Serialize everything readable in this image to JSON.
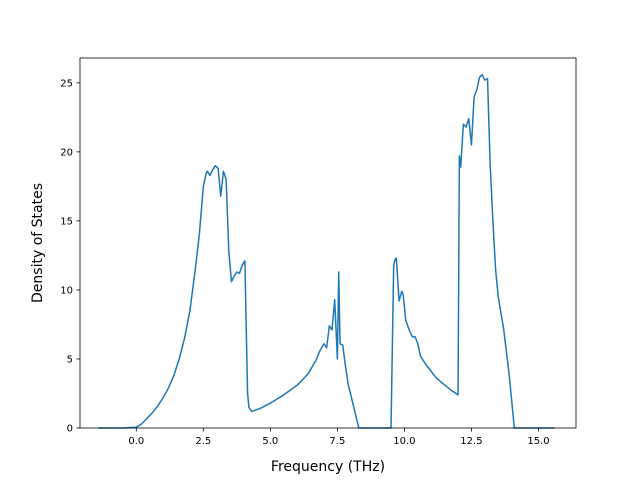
{
  "chart_data": {
    "type": "line",
    "title": "",
    "xlabel": "Frequency (THz)",
    "ylabel": "Density of States",
    "xlim": [
      -2.1,
      16.4
    ],
    "ylim": [
      0,
      26.8
    ],
    "xticks": [
      0.0,
      2.5,
      5.0,
      7.5,
      10.0,
      12.5,
      15.0
    ],
    "xtick_labels": [
      "0.0",
      "2.5",
      "5.0",
      "7.5",
      "10.0",
      "12.5",
      "15.0"
    ],
    "yticks": [
      0,
      5,
      10,
      15,
      20,
      25
    ],
    "ytick_labels": [
      "0",
      "5",
      "10",
      "15",
      "20",
      "25"
    ],
    "grid": false,
    "legend": "none",
    "line_color": "#1f77b4",
    "series": [
      {
        "x": [
          -1.4,
          -0.5,
          0.0,
          0.2,
          0.4,
          0.6,
          0.8,
          1.0,
          1.2,
          1.4,
          1.6,
          1.8,
          2.0,
          2.2,
          2.35,
          2.5,
          2.6,
          2.65,
          2.75,
          2.85,
          2.95,
          3.05,
          3.15,
          3.25,
          3.35,
          3.45,
          3.55,
          3.65,
          3.75,
          3.85,
          3.95,
          4.05,
          4.15,
          4.2,
          4.3,
          4.6,
          5.0,
          5.5,
          6.0,
          6.4,
          6.7,
          6.85,
          7.0,
          7.1,
          7.2,
          7.3,
          7.4,
          7.5,
          7.55,
          7.6,
          7.7,
          7.8,
          7.9,
          8.1,
          8.3,
          8.5,
          9.5,
          9.6,
          9.65,
          9.7,
          9.8,
          9.9,
          9.95,
          10.0,
          10.05,
          10.2,
          10.3,
          10.4,
          10.5,
          10.6,
          10.8,
          11.2,
          11.7,
          12.0,
          12.05,
          12.1,
          12.15,
          12.2,
          12.3,
          12.4,
          12.5,
          12.6,
          12.7,
          12.8,
          12.9,
          13.0,
          13.1,
          13.2,
          13.3,
          13.4,
          13.5,
          13.7,
          13.9,
          14.1,
          14.2,
          14.5,
          15.0,
          15.6
        ],
        "y": [
          0,
          0,
          0.05,
          0.3,
          0.7,
          1.1,
          1.6,
          2.2,
          2.9,
          3.8,
          5.0,
          6.5,
          8.5,
          11.5,
          14.0,
          17.5,
          18.4,
          18.6,
          18.3,
          18.7,
          19.0,
          18.8,
          16.8,
          18.6,
          18.0,
          12.8,
          10.6,
          11.0,
          11.3,
          11.2,
          11.8,
          12.1,
          2.5,
          1.5,
          1.2,
          1.4,
          1.8,
          2.4,
          3.1,
          3.9,
          4.9,
          5.6,
          6.1,
          5.8,
          7.4,
          7.1,
          9.3,
          5.0,
          11.3,
          6.1,
          6.0,
          4.5,
          3.2,
          1.6,
          0,
          0,
          0,
          11.8,
          12.2,
          12.3,
          9.2,
          9.9,
          9.7,
          8.8,
          7.8,
          7.0,
          6.6,
          6.6,
          6.1,
          5.2,
          4.6,
          3.6,
          2.8,
          2.4,
          19.7,
          18.9,
          20.5,
          22.0,
          21.8,
          22.4,
          20.5,
          24.0,
          24.5,
          25.4,
          25.6,
          25.2,
          25.3,
          19.0,
          15.0,
          11.5,
          9.5,
          7.2,
          4.0,
          0,
          0,
          0,
          0,
          0
        ]
      }
    ]
  }
}
